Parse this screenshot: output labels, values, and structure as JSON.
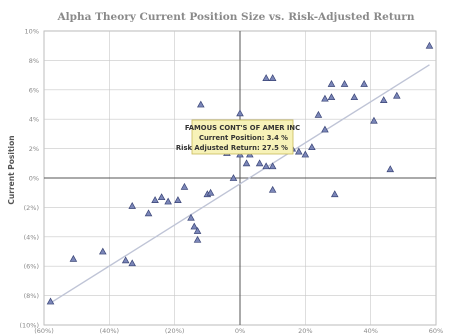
{
  "chart_data": {
    "type": "scatter",
    "title": "Alpha Theory Current Position Size vs. Risk-Adjusted Return",
    "ylabel": "Current Position",
    "xlabel": "",
    "xlim": [
      -60,
      60
    ],
    "ylim": [
      -10,
      10
    ],
    "x_ticks": [
      {
        "v": -60,
        "label": "(60%)"
      },
      {
        "v": -40,
        "label": "(40%)"
      },
      {
        "v": -20,
        "label": "(20%)"
      },
      {
        "v": 0,
        "label": "0%"
      },
      {
        "v": 20,
        "label": "20%"
      },
      {
        "v": 40,
        "label": "40%"
      },
      {
        "v": 60,
        "label": "60%"
      }
    ],
    "y_ticks": [
      {
        "v": 10,
        "label": "10%"
      },
      {
        "v": 8,
        "label": "8%"
      },
      {
        "v": 6,
        "label": "6%"
      },
      {
        "v": 4,
        "label": "4%"
      },
      {
        "v": 2,
        "label": "2%"
      },
      {
        "v": 0,
        "label": "0%"
      },
      {
        "v": -2,
        "label": "(2%)"
      },
      {
        "v": -4,
        "label": "(4%)"
      },
      {
        "v": -6,
        "label": "(6%)"
      },
      {
        "v": -8,
        "label": "(8%)"
      },
      {
        "v": -10,
        "label": "(10%)"
      }
    ],
    "grid": true,
    "trendline": {
      "x": [
        -58,
        58
      ],
      "y": [
        -8.5,
        7.7
      ]
    },
    "points": [
      {
        "x": -58,
        "y": -8.4
      },
      {
        "x": -51,
        "y": -5.5
      },
      {
        "x": -42,
        "y": -5.0
      },
      {
        "x": -35,
        "y": -5.6
      },
      {
        "x": -33,
        "y": -5.8
      },
      {
        "x": -33,
        "y": -1.9
      },
      {
        "x": -28,
        "y": -2.4
      },
      {
        "x": -26,
        "y": -1.5
      },
      {
        "x": -24,
        "y": -1.3
      },
      {
        "x": -22,
        "y": -1.6
      },
      {
        "x": -19,
        "y": -1.5
      },
      {
        "x": -17,
        "y": -0.6
      },
      {
        "x": -15,
        "y": -2.7
      },
      {
        "x": -14,
        "y": -3.3
      },
      {
        "x": -13,
        "y": -3.6
      },
      {
        "x": -13,
        "y": -4.2
      },
      {
        "x": -12,
        "y": 5.0
      },
      {
        "x": -12,
        "y": 3.3
      },
      {
        "x": -10,
        "y": -1.1
      },
      {
        "x": -9,
        "y": -1.0
      },
      {
        "x": -8,
        "y": 2.9
      },
      {
        "x": -7,
        "y": 3.1
      },
      {
        "x": -6,
        "y": 2.3
      },
      {
        "x": -5,
        "y": 2.2
      },
      {
        "x": -4,
        "y": 1.7
      },
      {
        "x": -2,
        "y": 0.0
      },
      {
        "x": 0,
        "y": 4.4
      },
      {
        "x": 0,
        "y": 1.6
      },
      {
        "x": 2,
        "y": 1.0
      },
      {
        "x": 3,
        "y": 1.6
      },
      {
        "x": 4,
        "y": 2.3
      },
      {
        "x": 5,
        "y": 3.3
      },
      {
        "x": 6,
        "y": 1.0
      },
      {
        "x": 8,
        "y": 6.8
      },
      {
        "x": 10,
        "y": 6.8
      },
      {
        "x": 8,
        "y": 0.8
      },
      {
        "x": 10,
        "y": 0.8
      },
      {
        "x": 10,
        "y": -0.8
      },
      {
        "x": 14,
        "y": 2.3
      },
      {
        "x": 16,
        "y": 2.0
      },
      {
        "x": 18,
        "y": 1.8
      },
      {
        "x": 20,
        "y": 1.6
      },
      {
        "x": 22,
        "y": 2.1
      },
      {
        "x": 24,
        "y": 4.3
      },
      {
        "x": 26,
        "y": 5.4
      },
      {
        "x": 26,
        "y": 3.3
      },
      {
        "x": 28,
        "y": 5.5
      },
      {
        "x": 28,
        "y": 6.4
      },
      {
        "x": 29,
        "y": -1.1
      },
      {
        "x": 32,
        "y": 6.4
      },
      {
        "x": 35,
        "y": 5.5
      },
      {
        "x": 38,
        "y": 6.4
      },
      {
        "x": 41,
        "y": 3.9
      },
      {
        "x": 44,
        "y": 5.3
      },
      {
        "x": 46,
        "y": 0.6
      },
      {
        "x": 48,
        "y": 5.6
      },
      {
        "x": 58,
        "y": 9.0
      }
    ],
    "tooltip": {
      "title": "FAMOUS CONT'S OF AMER INC",
      "line1": "Current Position: 3.4 %",
      "line2": "Risk Adjusted Return: 27.5 %",
      "anchor": {
        "x": 5,
        "y": 3.3
      }
    },
    "colors": {
      "marker_fill": "#7b86b8",
      "marker_stroke": "#3a4577",
      "trend": "#bfc4d6",
      "grid": "#c8c8c8",
      "tooltip_bg": "#f7f2b8",
      "tooltip_border": "#c9b95a"
    }
  }
}
